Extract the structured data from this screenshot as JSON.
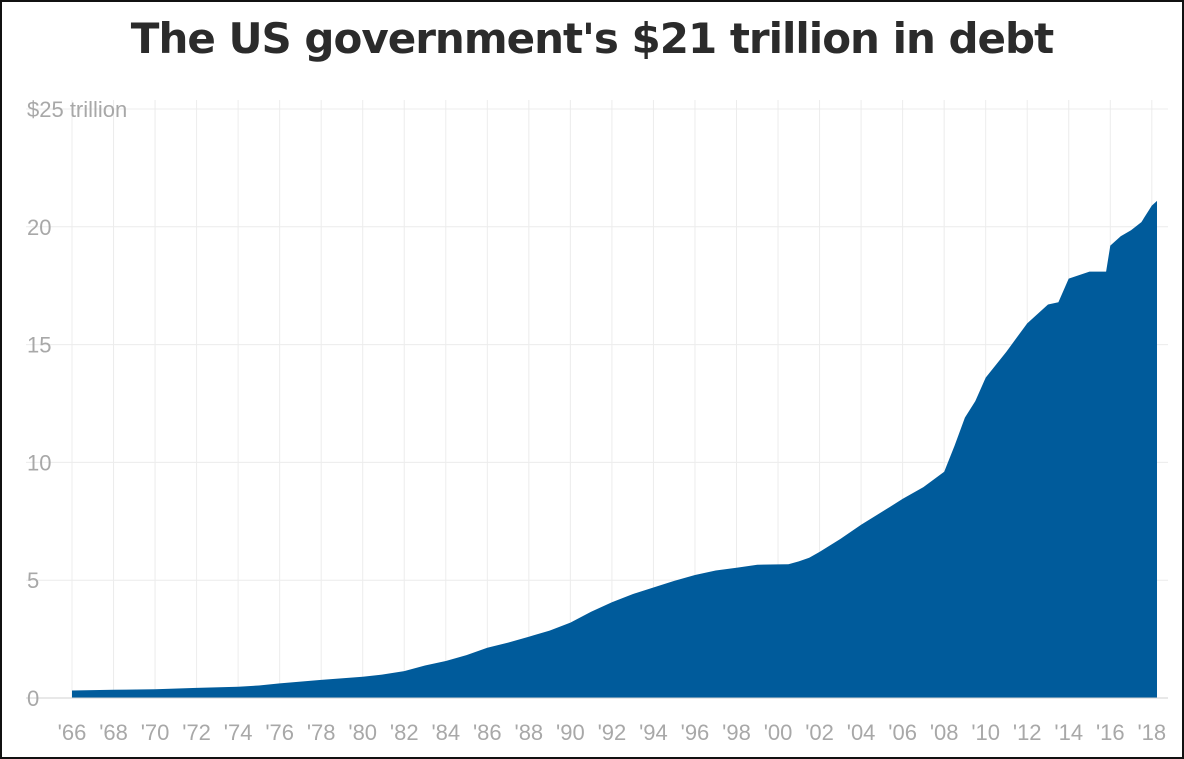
{
  "chart_data": {
    "type": "area",
    "title": "The US government's $21 trillion in debt",
    "xlabel": "",
    "ylabel": "",
    "y_unit_label": "$25 trillion",
    "xlim": [
      1966,
      2018.25
    ],
    "ylim": [
      0,
      25
    ],
    "grid": true,
    "colors": {
      "area": "#005b9b",
      "grid": "#ececec",
      "tick_text": "#a8a8a8",
      "title": "#2b2b2b"
    },
    "y_ticks": [
      {
        "value": 0,
        "label": "0"
      },
      {
        "value": 5,
        "label": "5"
      },
      {
        "value": 10,
        "label": "10"
      },
      {
        "value": 15,
        "label": "15"
      },
      {
        "value": 20,
        "label": "20"
      },
      {
        "value": 25,
        "label": "$25 trillion"
      }
    ],
    "x_ticks": [
      {
        "value": 1966,
        "label": "'66"
      },
      {
        "value": 1968,
        "label": "'68"
      },
      {
        "value": 1970,
        "label": "'70"
      },
      {
        "value": 1972,
        "label": "'72"
      },
      {
        "value": 1974,
        "label": "'74"
      },
      {
        "value": 1976,
        "label": "'76"
      },
      {
        "value": 1978,
        "label": "'78"
      },
      {
        "value": 1980,
        "label": "'80"
      },
      {
        "value": 1982,
        "label": "'82"
      },
      {
        "value": 1984,
        "label": "'84"
      },
      {
        "value": 1986,
        "label": "'86"
      },
      {
        "value": 1988,
        "label": "'88"
      },
      {
        "value": 1990,
        "label": "'90"
      },
      {
        "value": 1992,
        "label": "'92"
      },
      {
        "value": 1994,
        "label": "'94"
      },
      {
        "value": 1996,
        "label": "'96"
      },
      {
        "value": 1998,
        "label": "'98"
      },
      {
        "value": 2000,
        "label": "'00"
      },
      {
        "value": 2002,
        "label": "'02"
      },
      {
        "value": 2004,
        "label": "'04"
      },
      {
        "value": 2006,
        "label": "'06"
      },
      {
        "value": 2008,
        "label": "'08"
      },
      {
        "value": 2010,
        "label": "'10"
      },
      {
        "value": 2012,
        "label": "'12"
      },
      {
        "value": 2014,
        "label": "'14"
      },
      {
        "value": 2016,
        "label": "'16"
      },
      {
        "value": 2018,
        "label": "'18"
      }
    ],
    "series": [
      {
        "x": [
          1966,
          1968,
          1970,
          1972,
          1974,
          1975,
          1976,
          1978,
          1980,
          1981,
          1982,
          1983,
          1984,
          1985,
          1986,
          1987,
          1988,
          1989,
          1990,
          1991,
          1992,
          1993,
          1994,
          1995,
          1996,
          1997,
          1998,
          1999,
          2000,
          2000.5,
          2001,
          2001.5,
          2002,
          2003,
          2004,
          2005,
          2006,
          2007,
          2008,
          2008.5,
          2009,
          2009.5,
          2010,
          2011,
          2011.5,
          2012,
          2013,
          2013.5,
          2014,
          2015,
          2015.8,
          2016,
          2016.5,
          2017,
          2017.5,
          2018,
          2018.25
        ],
        "y": [
          0.32,
          0.35,
          0.37,
          0.43,
          0.48,
          0.53,
          0.62,
          0.77,
          0.9,
          1.0,
          1.14,
          1.38,
          1.57,
          1.82,
          2.13,
          2.35,
          2.6,
          2.86,
          3.2,
          3.66,
          4.06,
          4.41,
          4.69,
          4.97,
          5.22,
          5.41,
          5.53,
          5.66,
          5.67,
          5.68,
          5.8,
          5.95,
          6.2,
          6.75,
          7.35,
          7.9,
          8.45,
          8.95,
          9.6,
          10.7,
          11.9,
          12.6,
          13.6,
          14.7,
          15.3,
          15.9,
          16.7,
          16.8,
          17.8,
          18.1,
          18.1,
          19.2,
          19.6,
          19.85,
          20.2,
          20.9,
          21.1
        ]
      }
    ]
  }
}
